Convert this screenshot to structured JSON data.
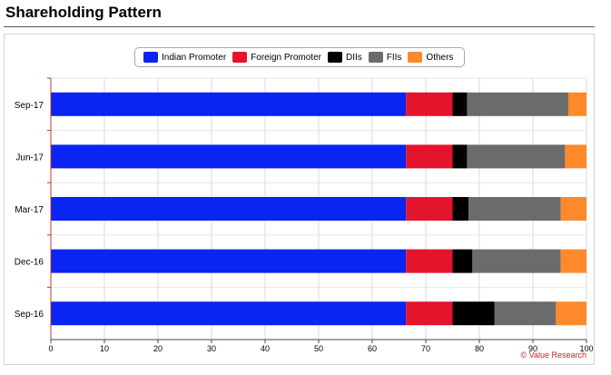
{
  "page": {
    "title": "Shareholding Pattern"
  },
  "credit": "© Value Research",
  "chart_data": {
    "type": "bar",
    "orientation": "horizontal",
    "stacked": true,
    "categories": [
      "Sep-17",
      "Jun-17",
      "Mar-17",
      "Dec-16",
      "Sep-16"
    ],
    "series": [
      {
        "name": "Indian Promoter",
        "color": "#0a24f2",
        "values": [
          66.3,
          66.3,
          66.3,
          66.3,
          66.3
        ]
      },
      {
        "name": "Foreign Promoter",
        "color": "#e5142d",
        "values": [
          8.7,
          8.7,
          8.7,
          8.7,
          8.7
        ]
      },
      {
        "name": "DIIs",
        "color": "#000000",
        "values": [
          2.7,
          2.7,
          3.0,
          3.7,
          7.8
        ]
      },
      {
        "name": "FIIs",
        "color": "#6b6b6b",
        "values": [
          18.9,
          18.3,
          17.2,
          16.5,
          11.5
        ]
      },
      {
        "name": "Others",
        "color": "#ff8a2b",
        "values": [
          3.4,
          4.0,
          4.8,
          4.8,
          5.7
        ]
      }
    ],
    "xlim": [
      0,
      100
    ],
    "xticks": [
      "0",
      "10",
      "20",
      "30",
      "40",
      "50",
      "60",
      "70",
      "80",
      "90",
      "100"
    ],
    "grid": true,
    "legend_position": "top-center"
  }
}
